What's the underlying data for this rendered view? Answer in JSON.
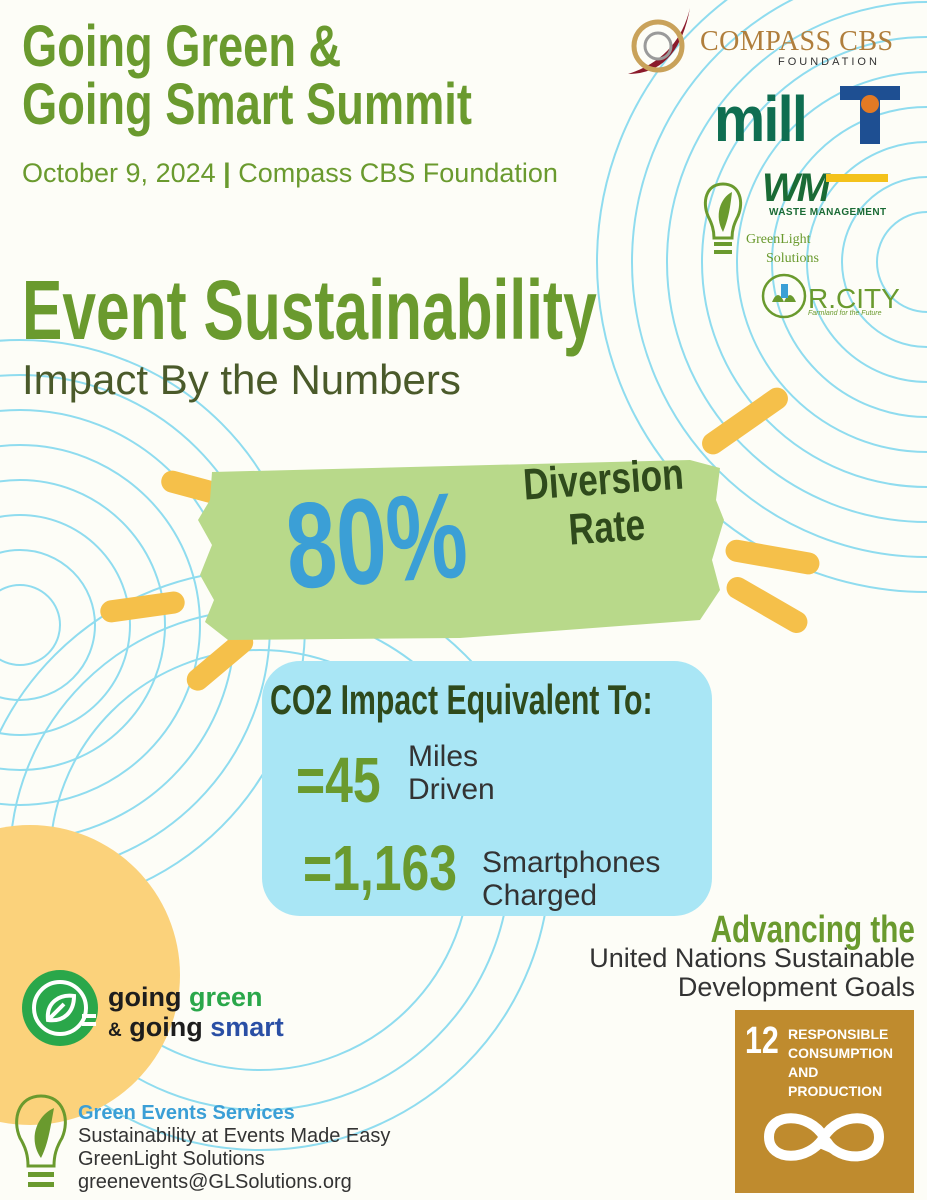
{
  "header": {
    "title_line1": "Going Green &",
    "title_line2": "Going Smart Summit",
    "date": "October 9, 2024",
    "separator": "|",
    "organizer": "Compass CBS Foundation"
  },
  "sponsors": {
    "compass_name": "COMPASS CBS",
    "compass_sub": "FOUNDATION",
    "mill": "mill",
    "wm_logo": "WM",
    "wm_sub": "WASTE MANAGEMENT",
    "greenlight_line1": "GreenLight",
    "greenlight_line2": "Solutions",
    "rcity": "R.CITY",
    "rcity_tagline": "Farmland for the Future"
  },
  "headline": {
    "title": "Event Sustainability",
    "subtitle": "Impact By the Numbers"
  },
  "diversion": {
    "value": "80%",
    "label_line1": "Diversion",
    "label_line2": "Rate"
  },
  "co2": {
    "title": "CO2 Impact Equivalent To:",
    "items": [
      {
        "value": "=45",
        "label_line1": "Miles",
        "label_line2": "Driven"
      },
      {
        "value": "=1,163",
        "label_line1": "Smartphones",
        "label_line2": "Charged"
      }
    ]
  },
  "advancing": {
    "title": "Advancing the",
    "line1": "United Nations Sustainable",
    "line2": "Development Goals"
  },
  "sdg": {
    "number": "12",
    "text_line1": "RESPONSIBLE",
    "text_line2": "CONSUMPTION",
    "text_line3": "AND PRODUCTION",
    "color": "#bf8b2e"
  },
  "brand": {
    "line1_word1": "going",
    "line1_word2": "green",
    "line2_amp": "&",
    "line2_word1": "going",
    "line2_word2": "smart"
  },
  "services": {
    "title": "Green Events Services",
    "line1": "Sustainability at Events Made Easy",
    "line2": "GreenLight Solutions",
    "email": "greenevents@GLSolutions.org"
  },
  "colors": {
    "green": "#6a9a2e",
    "blue": "#3b9fd6",
    "light_blue": "#a9e6f5",
    "yellow": "#f5c04a",
    "brush": "#b8d98a"
  }
}
